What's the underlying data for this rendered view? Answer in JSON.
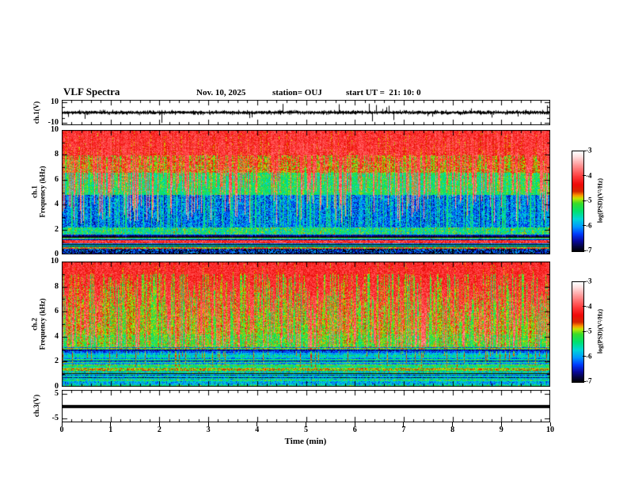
{
  "header": {
    "title": "VLF Spectra",
    "date": "Nov. 10, 2025",
    "station": "station= OUJ",
    "start_ut": "start UT =  21: 10: 0"
  },
  "xaxis": {
    "label": "Time (min)",
    "ticks": [
      0,
      1,
      2,
      3,
      4,
      5,
      6,
      7,
      8,
      9,
      10
    ],
    "minor_per_major": 5,
    "xlim": [
      0,
      10
    ]
  },
  "chart_data": [
    {
      "type": "line",
      "name": "ch1-waveform",
      "ylabel": "ch.1(V)",
      "yticks": [
        10,
        -10
      ],
      "ylim": [
        -12,
        12
      ],
      "description": "broadband noise around 0 V with impulsive spikes toward +/-10 V",
      "seed": 11,
      "noise_amp": 2.2,
      "spike_prob": 0.055,
      "spike_max": 11
    },
    {
      "type": "heatmap",
      "name": "ch1-spectrogram",
      "ylabel_ch": "ch.1",
      "ylabel_freq": "Frequency (kHz)",
      "yticks": [
        10,
        8,
        6,
        4,
        2,
        0
      ],
      "ylim": [
        0,
        10
      ],
      "value_range": [
        -7,
        -3
      ],
      "seed": 101,
      "bands": [
        {
          "t0": 0.0,
          "t1": 0.2,
          "v": -4.3,
          "jit": 0.45
        },
        {
          "t0": 0.2,
          "t1": 0.34,
          "v": -4.8,
          "jit": 0.4
        },
        {
          "t0": 0.34,
          "t1": 0.52,
          "v": -5.3,
          "jit": 0.4
        },
        {
          "t0": 0.52,
          "t1": 0.78,
          "v": -6.1,
          "jit": 0.5
        },
        {
          "t0": 0.78,
          "t1": 0.84,
          "v": -5.4,
          "jit": 0.6
        },
        {
          "t0": 0.84,
          "t1": 1.0,
          "v": -6.2,
          "jit": 0.5
        }
      ],
      "red_streaks": {
        "pow": 1.6,
        "max_depth": 0.75,
        "v": -4.15,
        "slope": 0.8,
        "jit": 0.3
      },
      "cyan_lines": {
        "prob": 0.14,
        "zone": [
          0.5,
          0.86
        ],
        "v": -5.4,
        "jit": 0.3
      },
      "row_band": {
        "start": 0.84,
        "mix": 0.7,
        "base": -6.1,
        "amp": 1.9
      },
      "hbands": [
        {
          "t": 0.895,
          "h": 0.012,
          "v": -4.1,
          "jit": 0.5
        },
        {
          "t": 0.945,
          "h": 0.008,
          "v": -4.6,
          "jit": 0.6
        },
        {
          "t": 0.975,
          "h": 0.02,
          "v": -6.6,
          "jit": 0.8
        }
      ]
    },
    {
      "type": "heatmap",
      "name": "ch2-spectrogram",
      "ylabel_ch": "ch.2",
      "ylabel_freq": "Frequency (kHz)",
      "yticks": [
        10,
        8,
        6,
        4,
        2,
        0
      ],
      "ylim": [
        0,
        10
      ],
      "value_range": [
        -7,
        -3
      ],
      "seed": 202,
      "bands": [
        {
          "t0": 0.0,
          "t1": 0.1,
          "v": -4.4,
          "jit": 0.45
        },
        {
          "t0": 0.1,
          "t1": 0.58,
          "v": -4.95,
          "jit": 0.35
        },
        {
          "t0": 0.58,
          "t1": 0.7,
          "v": -5.1,
          "jit": 0.4
        },
        {
          "t0": 0.7,
          "t1": 0.8,
          "v": -6.0,
          "jit": 0.6
        },
        {
          "t0": 0.8,
          "t1": 0.87,
          "v": -5.05,
          "jit": 0.45
        },
        {
          "t0": 0.87,
          "t1": 1.0,
          "v": -5.8,
          "jit": 0.8
        }
      ],
      "red_streaks": {
        "pow": 1.3,
        "max_depth": 0.85,
        "v": -4.2,
        "slope": 0.7,
        "jit": 0.3
      },
      "cyan_lines": {
        "prob": 0.1,
        "zone": [
          0.68,
          1.0
        ],
        "v": -5.5,
        "jit": 0.3
      },
      "row_band": {
        "start": 0.68,
        "mix": 0.5,
        "base": -5.8,
        "amp": 1.6
      },
      "hbands": [
        {
          "t": 0.705,
          "h": 0.006,
          "v": -6.6,
          "jit": 0.3
        },
        {
          "t": 0.86,
          "h": 0.008,
          "v": -4.9,
          "jit": 0.5
        }
      ]
    },
    {
      "type": "line",
      "name": "ch3-waveform",
      "ylabel": "ch.3(V)",
      "yticks": [
        5,
        -5
      ],
      "ylim": [
        -6.5,
        6.5
      ],
      "description": "flat signal at 0 V (thick constant line)",
      "flat_value": 0
    }
  ],
  "colorbars": [
    {
      "ticks": [
        -3,
        -4,
        -5,
        -6,
        -7
      ],
      "label": "log(PSD)(V²/Hz)"
    },
    {
      "ticks": [
        -3,
        -4,
        -5,
        -6,
        -7
      ],
      "label": "log(PSD)(V²/Hz)"
    }
  ],
  "colormap_stops": [
    [
      0.0,
      255,
      255,
      255
    ],
    [
      0.05,
      255,
      225,
      225
    ],
    [
      0.15,
      255,
      140,
      140
    ],
    [
      0.25,
      255,
      60,
      60
    ],
    [
      0.33,
      240,
      10,
      10
    ],
    [
      0.4,
      215,
      40,
      0
    ],
    [
      0.44,
      250,
      150,
      0
    ],
    [
      0.47,
      200,
      230,
      0
    ],
    [
      0.52,
      60,
      220,
      40
    ],
    [
      0.6,
      0,
      225,
      110
    ],
    [
      0.68,
      0,
      215,
      215
    ],
    [
      0.76,
      0,
      150,
      255
    ],
    [
      0.83,
      0,
      60,
      255
    ],
    [
      0.9,
      10,
      10,
      160
    ],
    [
      0.96,
      5,
      5,
      60
    ],
    [
      1.0,
      0,
      0,
      10
    ]
  ],
  "colors": {
    "frame": "#000000",
    "background": "#ffffff"
  }
}
